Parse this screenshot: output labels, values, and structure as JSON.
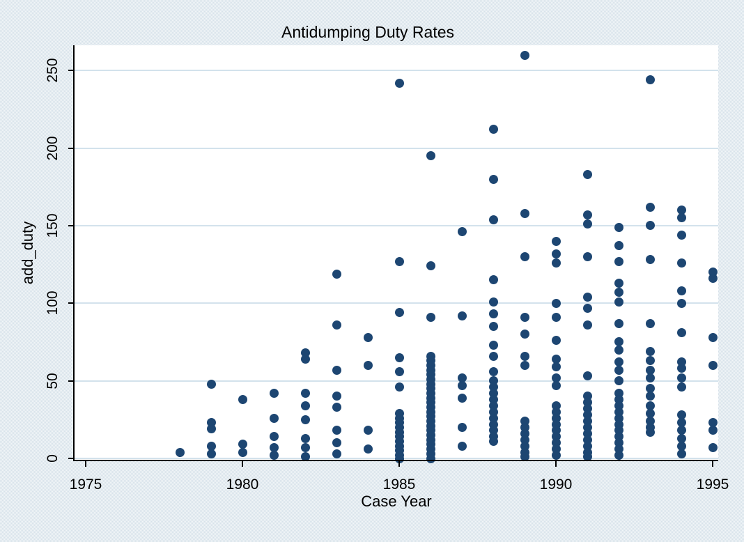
{
  "title": "Antidumping Duty Rates",
  "chart_data": {
    "type": "scatter",
    "title": "Antidumping Duty Rates",
    "xlabel": "Case Year",
    "ylabel": "add_duty",
    "x_ticks": [
      1975,
      1980,
      1985,
      1990,
      1995
    ],
    "y_ticks": [
      0,
      50,
      100,
      150,
      200,
      250
    ],
    "xlim": [
      1974.6,
      1995.6
    ],
    "ylim": [
      0,
      267
    ],
    "grid": "horizontal",
    "legend": "none",
    "marker_color": "#1d4672",
    "gridline_color": "#d3e2ec",
    "axis_color": "#000000",
    "background_color": "#eaf0f4",
    "plot_background_color": "#ffffff",
    "points": [
      {
        "year": 1978,
        "duties": [
          4
        ]
      },
      {
        "year": 1979,
        "duties": [
          48,
          23,
          19,
          8,
          3
        ]
      },
      {
        "year": 1980,
        "duties": [
          38,
          9,
          4
        ]
      },
      {
        "year": 1981,
        "duties": [
          42,
          26,
          14,
          7,
          2
        ]
      },
      {
        "year": 1982,
        "duties": [
          68,
          64,
          42,
          34,
          25,
          13,
          7,
          1
        ]
      },
      {
        "year": 1983,
        "duties": [
          119,
          86,
          57,
          40,
          33,
          18,
          10,
          3
        ]
      },
      {
        "year": 1984,
        "duties": [
          78,
          60,
          18,
          6
        ]
      },
      {
        "year": 1985,
        "duties": [
          242,
          127,
          94,
          65,
          56,
          46,
          29,
          26,
          23,
          20,
          17,
          14,
          11,
          8,
          5,
          2,
          0
        ]
      },
      {
        "year": 1986,
        "duties": [
          195,
          124,
          91,
          66,
          63,
          60,
          57,
          54,
          51,
          48,
          45,
          42,
          39,
          36,
          33,
          30,
          27,
          24,
          21,
          18,
          15,
          12,
          9,
          6,
          3,
          0
        ]
      },
      {
        "year": 1987,
        "duties": [
          146,
          92,
          52,
          47,
          39,
          20,
          8
        ]
      },
      {
        "year": 1988,
        "duties": [
          212,
          180,
          154,
          115,
          101,
          93,
          85,
          73,
          66,
          56,
          50,
          46,
          42,
          38,
          34,
          30,
          26,
          22,
          18,
          14,
          11
        ]
      },
      {
        "year": 1989,
        "duties": [
          260,
          158,
          130,
          91,
          80,
          66,
          60,
          24,
          20,
          16,
          12,
          8,
          4,
          1
        ]
      },
      {
        "year": 1990,
        "duties": [
          140,
          132,
          126,
          100,
          91,
          76,
          64,
          59,
          52,
          47,
          34,
          30,
          26,
          22,
          18,
          14,
          10,
          6,
          2
        ]
      },
      {
        "year": 1991,
        "duties": [
          183,
          157,
          151,
          130,
          104,
          97,
          86,
          53,
          40,
          36,
          32,
          28,
          24,
          20,
          16,
          12,
          8,
          4,
          1
        ]
      },
      {
        "year": 1992,
        "duties": [
          149,
          137,
          127,
          113,
          107,
          101,
          87,
          75,
          70,
          62,
          57,
          50,
          42,
          38,
          34,
          30,
          26,
          22,
          18,
          14,
          10,
          6,
          2
        ]
      },
      {
        "year": 1993,
        "duties": [
          244,
          162,
          150,
          128,
          87,
          69,
          63,
          57,
          52,
          45,
          40,
          34,
          29,
          24,
          20,
          17
        ]
      },
      {
        "year": 1994,
        "duties": [
          160,
          155,
          144,
          126,
          108,
          100,
          81,
          62,
          58,
          52,
          46,
          28,
          23,
          18,
          13,
          8,
          3
        ]
      },
      {
        "year": 1995,
        "duties": [
          120,
          116,
          78,
          60,
          23,
          18,
          7
        ]
      }
    ]
  }
}
